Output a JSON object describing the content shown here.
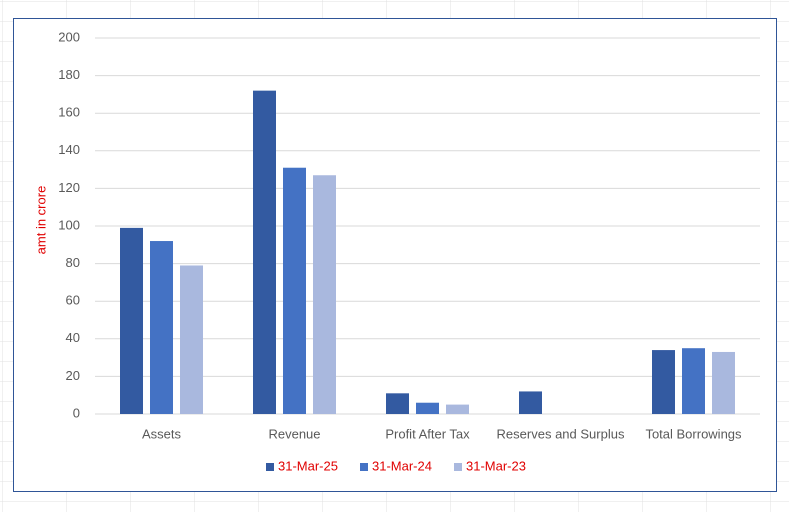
{
  "chart_data": {
    "type": "bar",
    "y_label": "amt in  crore",
    "categories": [
      "Assets",
      "Revenue",
      "Profit After Tax",
      "Reserves and Surplus",
      "Total Borrowings"
    ],
    "series": [
      {
        "name": "31-Mar-25",
        "color": "#335aa1",
        "values": [
          99,
          172,
          11,
          12,
          34
        ]
      },
      {
        "name": "31-Mar-24",
        "color": "#4472c4",
        "values": [
          92,
          131,
          6,
          null,
          35
        ]
      },
      {
        "name": "31-Mar-23",
        "color": "#a9b8de",
        "values": [
          79,
          127,
          5,
          null,
          33
        ]
      }
    ],
    "ylim": [
      0,
      200
    ],
    "yticks": [
      0,
      20,
      40,
      60,
      80,
      100,
      120,
      140,
      160,
      180,
      200
    ],
    "grid": true,
    "legend": "bottom"
  }
}
